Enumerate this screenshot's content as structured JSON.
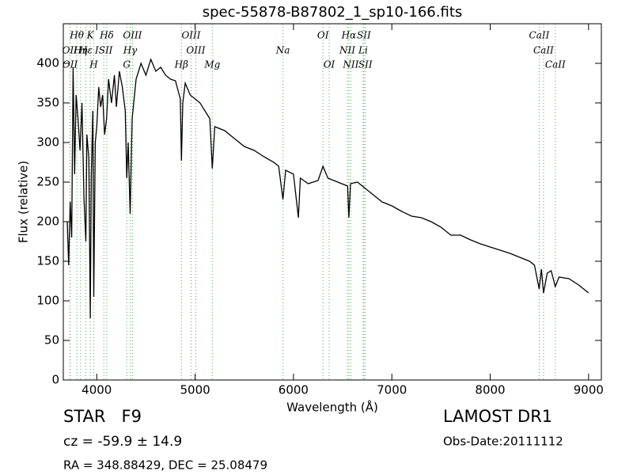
{
  "chart_data": {
    "type": "line",
    "title": "spec-55878-B87802_1_sp10-166.fits",
    "xlabel": "Wavelength (Å)",
    "ylabel": "Flux (relative)",
    "xlim": [
      3660,
      9130
    ],
    "ylim": [
      0,
      450
    ],
    "xticks": [
      4000,
      5000,
      6000,
      7000,
      8000,
      9000
    ],
    "yticks": [
      0,
      50,
      100,
      150,
      200,
      250,
      300,
      350,
      400
    ],
    "x": [
      3700,
      3715,
      3730,
      3745,
      3760,
      3775,
      3790,
      3810,
      3830,
      3850,
      3870,
      3889,
      3900,
      3920,
      3934,
      3945,
      3960,
      3970,
      3985,
      4000,
      4020,
      4040,
      4060,
      4080,
      4100,
      4120,
      4150,
      4180,
      4200,
      4230,
      4260,
      4290,
      4305,
      4320,
      4340,
      4360,
      4400,
      4450,
      4500,
      4550,
      4600,
      4650,
      4700,
      4750,
      4800,
      4850,
      4861,
      4875,
      4900,
      4950,
      5000,
      5050,
      5100,
      5150,
      5175,
      5200,
      5300,
      5400,
      5500,
      5600,
      5700,
      5800,
      5850,
      5893,
      5920,
      6000,
      6050,
      6070,
      6150,
      6250,
      6300,
      6350,
      6450,
      6550,
      6563,
      6580,
      6650,
      6750,
      6900,
      7000,
      7100,
      7200,
      7300,
      7400,
      7500,
      7600,
      7700,
      7800,
      7900,
      8000,
      8100,
      8200,
      8300,
      8400,
      8450,
      8498,
      8520,
      8542,
      8580,
      8620,
      8662,
      8700,
      8800,
      8900,
      9000
    ],
    "series": [
      {
        "color": "#000000",
        "values": [
          200,
          145,
          225,
          180,
          395,
          260,
          360,
          330,
          290,
          350,
          230,
          175,
          310,
          280,
          78,
          260,
          340,
          105,
          300,
          320,
          370,
          345,
          360,
          310,
          330,
          380,
          350,
          385,
          345,
          390,
          370,
          340,
          255,
          300,
          210,
          330,
          380,
          400,
          385,
          405,
          390,
          395,
          385,
          380,
          378,
          355,
          277,
          350,
          375,
          360,
          355,
          350,
          340,
          330,
          267,
          320,
          315,
          305,
          295,
          290,
          282,
          275,
          270,
          228,
          265,
          260,
          205,
          255,
          248,
          252,
          270,
          255,
          250,
          245,
          205,
          248,
          250,
          240,
          225,
          220,
          213,
          207,
          205,
          200,
          193,
          183,
          183,
          177,
          172,
          168,
          164,
          160,
          155,
          150,
          145,
          115,
          140,
          110,
          135,
          138,
          118,
          130,
          128,
          120,
          110
        ]
      }
    ],
    "line_color": "#4caf50",
    "line_labels": [
      [
        {
          "label": "Hθ",
          "x": 3798
        },
        {
          "label": "K",
          "x": 3934
        },
        {
          "label": "Hδ",
          "x": 4102
        },
        {
          "label": "OIII",
          "x": 4363
        },
        {
          "label": "OIII",
          "x": 4959
        },
        {
          "label": "OI",
          "x": 6300
        },
        {
          "label": "Hα",
          "x": 6563
        },
        {
          "label": "SII",
          "x": 6716
        },
        {
          "label": "CaII",
          "x": 8498
        }
      ],
      [
        {
          "label": "OII",
          "x": 3727
        },
        {
          "label": "Hη",
          "x": 3835
        },
        {
          "label": "Hε",
          "x": 3889
        },
        {
          "label": "ISII",
          "x": 4072
        },
        {
          "label": "Hγ",
          "x": 4340
        },
        {
          "label": "OIII",
          "x": 5007
        },
        {
          "label": "Na",
          "x": 5893
        },
        {
          "label": "NII",
          "x": 6548
        },
        {
          "label": "Li",
          "x": 6708
        },
        {
          "label": "CaII",
          "x": 8542
        }
      ],
      [
        {
          "label": "OII",
          "x": 3729
        },
        {
          "label": "H",
          "x": 3970
        },
        {
          "label": "G",
          "x": 4305
        },
        {
          "label": "Hβ",
          "x": 4861
        },
        {
          "label": "Mg",
          "x": 5175
        },
        {
          "label": "OI",
          "x": 6363
        },
        {
          "label": "NII",
          "x": 6583
        },
        {
          "label": "SII",
          "x": 6731
        },
        {
          "label": "CaII",
          "x": 8662
        }
      ]
    ],
    "footer": {
      "object": "STAR   F9",
      "cz": "cz = -59.9 ± 14.9",
      "coords": "RA = 348.88429, DEC = 25.08479",
      "survey": "LAMOST DR1",
      "obs_date": "Obs-Date:20111112"
    }
  }
}
